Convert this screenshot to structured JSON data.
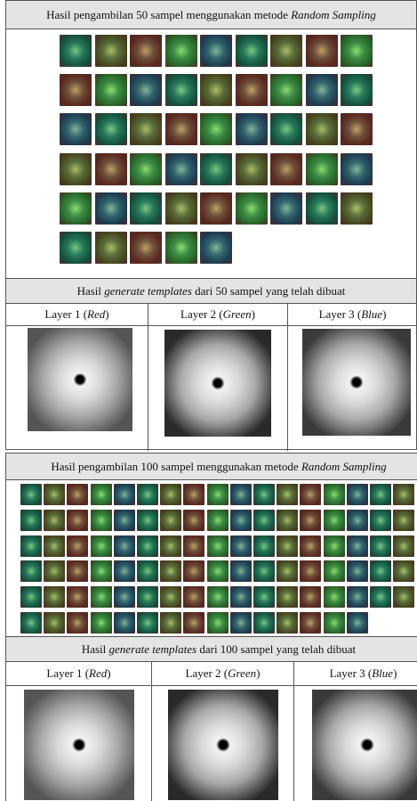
{
  "sections": [
    {
      "sample_title": [
        {
          "text": "Hasil pengambilan 50 sampel menggunakan metode "
        },
        {
          "text": "Random Sampling",
          "italic": true
        }
      ],
      "template_title": [
        {
          "text": "Hasil "
        },
        {
          "text": "generate templates",
          "italic": true
        },
        {
          "text": " dari 50 sampel yang telah dibuat"
        }
      ],
      "layers": [
        [
          {
            "text": "Layer 1 ("
          },
          {
            "text": "Red",
            "italic": true
          },
          {
            "text": ")"
          }
        ],
        [
          {
            "text": "Layer 2 ("
          },
          {
            "text": "Green",
            "italic": true
          },
          {
            "text": ")"
          }
        ],
        [
          {
            "text": "Layer 3 ("
          },
          {
            "text": "Blue",
            "italic": true
          },
          {
            "text": ")"
          }
        ]
      ]
    },
    {
      "sample_title": [
        {
          "text": "Hasil pengambilan 100 sampel menggunakan metode "
        },
        {
          "text": "Random Sampling",
          "italic": true
        }
      ],
      "template_title": [
        {
          "text": "Hasil "
        },
        {
          "text": "generate templates",
          "italic": true
        },
        {
          "text": " dari 100 sampel yang telah dibuat"
        }
      ],
      "layers": [
        [
          {
            "text": "Layer 1 ("
          },
          {
            "text": "Red",
            "italic": true
          },
          {
            "text": ")"
          }
        ],
        [
          {
            "text": "Layer 2 ("
          },
          {
            "text": "Green",
            "italic": true
          },
          {
            "text": ")"
          }
        ],
        [
          {
            "text": "Layer 3 ("
          },
          {
            "text": "Blue",
            "italic": true
          },
          {
            "text": ")"
          }
        ]
      ]
    }
  ]
}
